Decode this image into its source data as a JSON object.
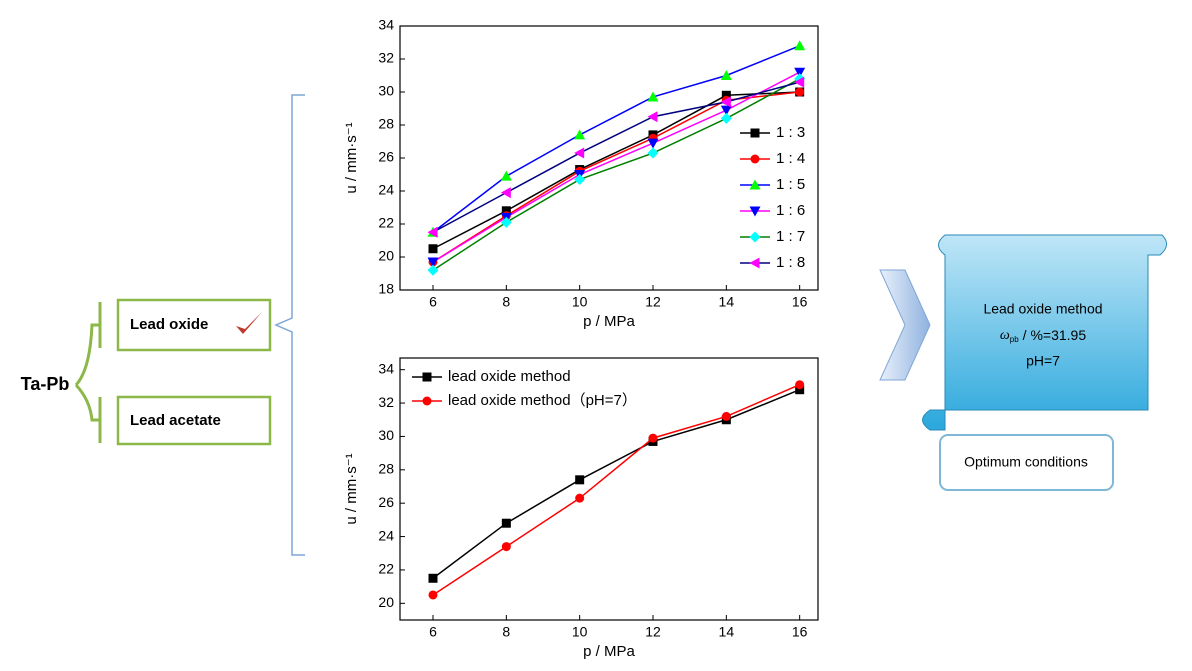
{
  "chart_data": [
    {
      "type": "line",
      "xlabel": "p / MPa",
      "ylabel": "u / mm·s⁻¹",
      "x": [
        6,
        8,
        10,
        12,
        14,
        16
      ],
      "xlim": [
        5.1,
        16.5
      ],
      "xticks": [
        6,
        8,
        10,
        12,
        14,
        16
      ],
      "ylim": [
        18,
        34
      ],
      "yticks": [
        18,
        20,
        22,
        24,
        26,
        28,
        30,
        32,
        34
      ],
      "legend": "right",
      "series": [
        {
          "name": "1 : 3",
          "color": "#000000",
          "marker": "square",
          "marker_color": "#000000",
          "values": [
            20.5,
            22.8,
            25.3,
            27.4,
            29.8,
            30.0
          ]
        },
        {
          "name": "1 : 4",
          "color": "#ff0000",
          "marker": "circle",
          "marker_color": "#ff0000",
          "values": [
            19.7,
            22.5,
            25.2,
            27.2,
            29.5,
            30.0
          ]
        },
        {
          "name": "1 : 5",
          "color": "#0000ff",
          "marker": "triangle-up",
          "marker_color": "#00ff00",
          "values": [
            21.5,
            24.9,
            27.4,
            29.7,
            31.0,
            32.8
          ]
        },
        {
          "name": "1 : 6",
          "color": "#ff00ff",
          "marker": "triangle-down",
          "marker_color": "#0000ff",
          "values": [
            19.7,
            22.4,
            25.0,
            26.9,
            28.9,
            31.2
          ]
        },
        {
          "name": "1 : 7",
          "color": "#008000",
          "marker": "diamond",
          "marker_color": "#00ffff",
          "values": [
            19.2,
            22.1,
            24.7,
            26.3,
            28.4,
            30.8
          ]
        },
        {
          "name": "1 : 8",
          "color": "#000080",
          "marker": "triangle-left",
          "marker_color": "#ff00ff",
          "values": [
            21.5,
            23.9,
            26.3,
            28.5,
            29.4,
            30.6
          ]
        }
      ]
    },
    {
      "type": "line",
      "xlabel": "p / MPa",
      "ylabel": "u / mm·s⁻¹",
      "x": [
        6,
        8,
        10,
        12,
        14,
        16
      ],
      "xlim": [
        5.1,
        16.5
      ],
      "xticks": [
        6,
        8,
        10,
        12,
        14,
        16
      ],
      "ylim": [
        19,
        34.7
      ],
      "yticks": [
        20,
        22,
        24,
        26,
        28,
        30,
        32,
        34
      ],
      "legend": "upper left",
      "series": [
        {
          "name": "lead oxide method",
          "color": "#000000",
          "marker": "square",
          "marker_color": "#000000",
          "values": [
            21.5,
            24.8,
            27.4,
            29.7,
            31.0,
            32.8
          ]
        },
        {
          "name": "lead oxide method（pH=7）",
          "color": "#ff0000",
          "marker": "circle",
          "marker_color": "#ff0000",
          "values": [
            20.5,
            23.4,
            26.3,
            29.9,
            31.2,
            33.1
          ]
        }
      ]
    }
  ],
  "diagram": {
    "root": "Ta-Pb",
    "options": [
      "Lead oxide",
      "Lead acetate"
    ],
    "result": {
      "method": "Lead oxide method",
      "symbol": "ω",
      "subscript": "pb",
      "value": "/ %=31.95",
      "ph": "pH=7",
      "label": "Optimum conditions"
    }
  }
}
